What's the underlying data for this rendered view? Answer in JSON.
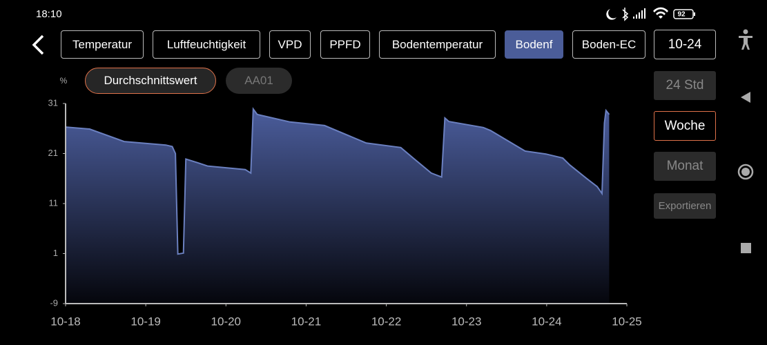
{
  "status_bar": {
    "time": "18:10",
    "battery": "92"
  },
  "tabs": [
    "Temperatur",
    "Luftfeuchtigkeit",
    "VPD",
    "PPFD",
    "Bodentemperatur",
    "Bodenf",
    "Boden-EC"
  ],
  "date": "10-24",
  "series_tabs": [
    "Durchschnittswert",
    "AA01"
  ],
  "range_buttons": [
    "24 Std",
    "Woche",
    "Monat"
  ],
  "export": "Exportieren",
  "chart_data": {
    "type": "area",
    "ylabel": "%",
    "color": "#6b80c0",
    "x": [
      0,
      0.3,
      0.73,
      1.25,
      1.33,
      1.37,
      1.4,
      1.47,
      1.5,
      1.64,
      1.77,
      2.24,
      2.31,
      2.34,
      2.39,
      2.8,
      3.23,
      3.75,
      4.18,
      4.35,
      4.56,
      4.69,
      4.73,
      4.78,
      5.21,
      5.3,
      5.73,
      5.99,
      6.2,
      6.29,
      6.5,
      6.63,
      6.69,
      6.72,
      6.74,
      6.78
    ],
    "values": [
      26.3,
      25.9,
      23.4,
      22.7,
      22.4,
      21.0,
      0.9,
      1.1,
      19.9,
      19.2,
      18.5,
      17.8,
      17.1,
      29.9,
      28.8,
      27.3,
      26.6,
      23.1,
      22.2,
      19.9,
      17.1,
      16.3,
      28.1,
      27.4,
      26.2,
      25.6,
      21.5,
      20.9,
      20.1,
      18.7,
      16.0,
      14.4,
      13.0,
      27.1,
      29.6,
      28.8
    ],
    "xlim": [
      0,
      7
    ],
    "ylim": [
      -9,
      31
    ],
    "xticks": [
      {
        "value": 0,
        "label": "10-18"
      },
      {
        "value": 1,
        "label": "10-19"
      },
      {
        "value": 2,
        "label": "10-20"
      },
      {
        "value": 3,
        "label": "10-21"
      },
      {
        "value": 4,
        "label": "10-22"
      },
      {
        "value": 5,
        "label": "10-23"
      },
      {
        "value": 6,
        "label": "10-24"
      },
      {
        "value": 7,
        "label": "10-25"
      }
    ],
    "yticks": [
      -9,
      1,
      11,
      21,
      31
    ]
  }
}
